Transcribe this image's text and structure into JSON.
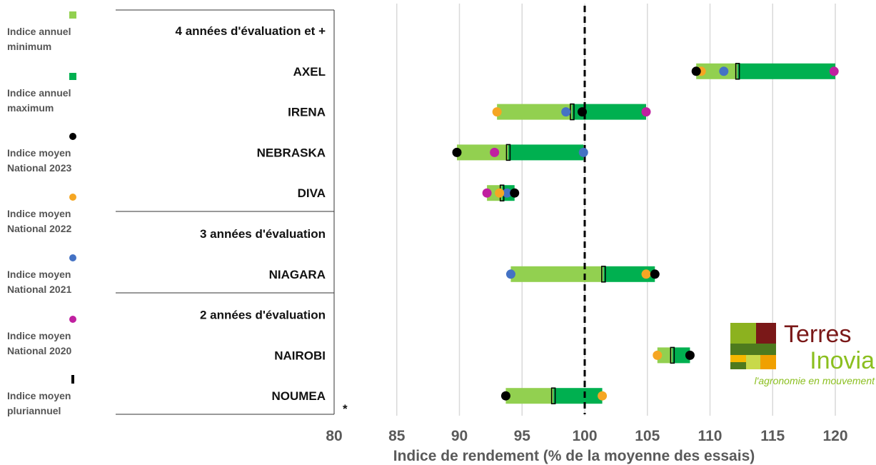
{
  "legend": [
    {
      "label_lines": [
        "Indice annuel",
        "minimum"
      ],
      "marker": "square",
      "color": "#92d050"
    },
    {
      "label_lines": [
        "Indice annuel",
        "maximum"
      ],
      "marker": "square",
      "color": "#00b050"
    },
    {
      "label_lines": [
        "Indice moyen",
        "National 2023"
      ],
      "marker": "circle",
      "color": "#000000"
    },
    {
      "label_lines": [
        "Indice moyen",
        "National 2022"
      ],
      "marker": "circle",
      "color": "#f5a623"
    },
    {
      "label_lines": [
        "Indice moyen",
        "National 2021"
      ],
      "marker": "circle",
      "color": "#4472c4"
    },
    {
      "label_lines": [
        "Indice moyen",
        "National 2020"
      ],
      "marker": "circle",
      "color": "#c020a0"
    },
    {
      "label_lines": [
        "Indice moyen",
        "pluriannuel"
      ],
      "marker": "bar",
      "color": "#000000"
    }
  ],
  "footnote_marker": "*",
  "logo": {
    "word1": "Terres",
    "word2": "Inovia",
    "tagline": "l'agronomie en mouvement"
  },
  "chart_data": {
    "type": "range-dot",
    "xlabel": "Indice de rendement (% de la moyenne des essais)",
    "xlim": [
      80,
      120
    ],
    "xticks": [
      80,
      85,
      90,
      95,
      100,
      105,
      110,
      115,
      120
    ],
    "reference_line": 100,
    "colors": {
      "range_low": "#92d050",
      "range_high": "#00b050",
      "y2023": "#000000",
      "y2022": "#f5a623",
      "y2021": "#4472c4",
      "y2020": "#c020a0",
      "multi_year": "#000000"
    },
    "groups": [
      {
        "label": "4 années d'évaluation et +",
        "varieties": [
          {
            "name": "AXEL",
            "min": 108.9,
            "max": 120,
            "mean": 112.2,
            "y2023": 108.9,
            "y2022": 109.3,
            "y2021": 111.1,
            "y2020": 119.9
          },
          {
            "name": "IRENA",
            "min": 93,
            "max": 104.9,
            "mean": 99,
            "y2023": 99.8,
            "y2022": 93,
            "y2021": 98.5,
            "y2020": 104.9
          },
          {
            "name": "NEBRASKA",
            "min": 89.8,
            "max": 99.9,
            "mean": 93.9,
            "y2023": 89.8,
            "y2022": null,
            "y2021": 99.9,
            "y2020": 92.8
          },
          {
            "name": "DIVA",
            "min": 92.2,
            "max": 94.4,
            "mean": 93.4,
            "y2023": 94.4,
            "y2022": 93.2,
            "y2021": 93.8,
            "y2020": 92.2
          }
        ]
      },
      {
        "label": "3 années d'évaluation",
        "varieties": [
          {
            "name": "NIAGARA",
            "min": 94.1,
            "max": 105.6,
            "mean": 101.5,
            "y2023": 105.6,
            "y2022": 104.9,
            "y2021": 94.1,
            "y2020": null
          }
        ]
      },
      {
        "label": "2 années d'évaluation",
        "varieties": [
          {
            "name": "NAIROBI",
            "min": 105.8,
            "max": 108.4,
            "mean": 107,
            "y2023": 108.4,
            "y2022": 105.8,
            "y2021": null,
            "y2020": null
          },
          {
            "name": "NOUMEA",
            "min": 93.7,
            "max": 101.4,
            "mean": 97.5,
            "y2023": 93.7,
            "y2022": 101.4,
            "y2021": null,
            "y2020": null
          }
        ]
      }
    ]
  }
}
